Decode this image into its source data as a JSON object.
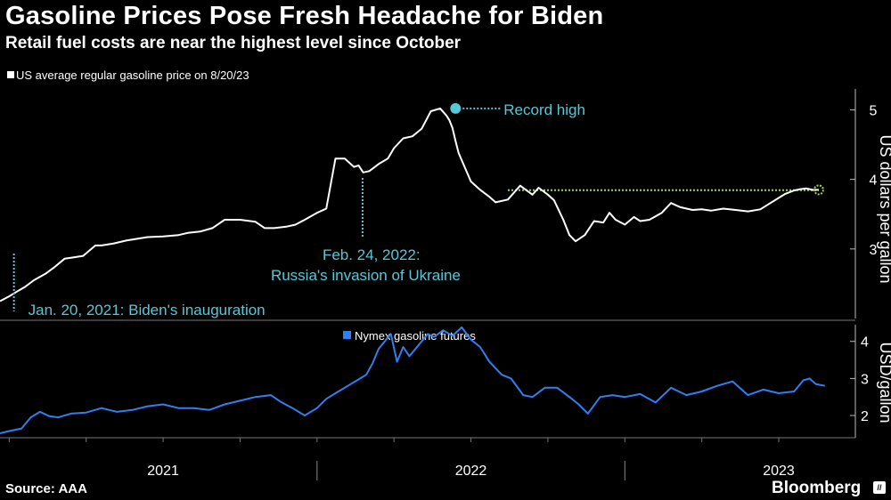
{
  "header": {
    "title": "Gasoline Prices Pose Fresh Headache for Biden",
    "subtitle": "Retail fuel costs are near the highest level since October"
  },
  "footer": {
    "source": "Source: AAA",
    "brand": "Bloomberg",
    "brand_icon_text": "//"
  },
  "colors": {
    "background": "#000000",
    "retail_line": "#ffffff",
    "futures_line": "#2f7ff0",
    "annotation": "#56c8d8",
    "current_marker": "#a8d84a",
    "axis": "#888888"
  },
  "chart_data": [
    {
      "type": "line",
      "legend": "US average regular gasoline price on 8/20/23",
      "ylabel": "US dollars per gallon",
      "ylim": [
        2.0,
        5.3
      ],
      "yticks": [
        "3",
        "4",
        "5"
      ],
      "xlim": [
        2020.97,
        2023.72
      ],
      "series": [
        {
          "name": "US average regular gasoline price",
          "x": [
            2020.97,
            2021.0,
            2021.03,
            2021.05,
            2021.08,
            2021.12,
            2021.15,
            2021.18,
            2021.21,
            2021.24,
            2021.28,
            2021.3,
            2021.34,
            2021.38,
            2021.42,
            2021.45,
            2021.5,
            2021.55,
            2021.58,
            2021.62,
            2021.66,
            2021.7,
            2021.75,
            2021.8,
            2021.83,
            2021.86,
            2021.9,
            2021.93,
            2021.96,
            2022.0,
            2022.03,
            2022.06,
            2022.09,
            2022.12,
            2022.135,
            2022.15,
            2022.17,
            2022.2,
            2022.23,
            2022.25,
            2022.28,
            2022.31,
            2022.34,
            2022.37,
            2022.4,
            2022.42,
            2022.43,
            2022.44,
            2022.45,
            2022.46,
            2022.5,
            2022.53,
            2022.56,
            2022.58,
            2022.62,
            2022.66,
            2022.7,
            2022.72,
            2022.75,
            2022.77,
            2022.8,
            2022.82,
            2022.84,
            2022.87,
            2022.9,
            2022.93,
            2022.95,
            2022.97,
            2023.0,
            2023.03,
            2023.05,
            2023.08,
            2023.12,
            2023.15,
            2023.18,
            2023.22,
            2023.25,
            2023.28,
            2023.32,
            2023.36,
            2023.4,
            2023.44,
            2023.48,
            2023.52,
            2023.55,
            2023.57,
            2023.59,
            2023.61,
            2023.63
          ],
          "values": [
            2.25,
            2.32,
            2.4,
            2.45,
            2.55,
            2.65,
            2.75,
            2.86,
            2.88,
            2.9,
            3.05,
            3.05,
            3.08,
            3.12,
            3.15,
            3.17,
            3.18,
            3.2,
            3.23,
            3.25,
            3.3,
            3.42,
            3.42,
            3.39,
            3.3,
            3.3,
            3.32,
            3.35,
            3.42,
            3.52,
            3.58,
            4.3,
            4.3,
            4.18,
            4.2,
            4.1,
            4.12,
            4.22,
            4.3,
            4.45,
            4.59,
            4.62,
            4.73,
            4.98,
            5.02,
            4.92,
            4.85,
            4.74,
            4.55,
            4.38,
            3.97,
            3.85,
            3.75,
            3.67,
            3.71,
            3.91,
            3.78,
            3.88,
            3.78,
            3.7,
            3.42,
            3.2,
            3.11,
            3.2,
            3.4,
            3.38,
            3.52,
            3.42,
            3.35,
            3.46,
            3.4,
            3.42,
            3.52,
            3.66,
            3.6,
            3.56,
            3.57,
            3.55,
            3.58,
            3.56,
            3.54,
            3.57,
            3.68,
            3.79,
            3.84,
            3.86,
            3.87,
            3.85,
            3.85
          ]
        }
      ],
      "annotations": [
        {
          "label": "Record high",
          "date": 2022.45,
          "value": 5.02
        },
        {
          "label": "Feb. 24, 2022:",
          "label2": "Russia's invasion of Ukraine",
          "date": 2022.148
        },
        {
          "label": "Jan. 20, 2021: Biden's inauguration",
          "date": 2021.05
        }
      ],
      "reference_line": {
        "value": 3.87,
        "from": 2022.62,
        "to": 2023.63
      }
    },
    {
      "type": "line",
      "legend": "Nymex gasoline futures",
      "ylabel": "USD/gallon",
      "ylim": [
        1.4,
        4.45
      ],
      "yticks": [
        "2",
        "3",
        "4"
      ],
      "xlim": [
        2020.97,
        2023.72
      ],
      "xticks": [
        "2021",
        "2022",
        "2023"
      ],
      "series": [
        {
          "name": "Nymex gasoline futures",
          "x": [
            2020.97,
            2021.0,
            2021.04,
            2021.07,
            2021.1,
            2021.13,
            2021.16,
            2021.2,
            2021.25,
            2021.3,
            2021.35,
            2021.4,
            2021.45,
            2021.5,
            2021.55,
            2021.6,
            2021.65,
            2021.7,
            2021.75,
            2021.8,
            2021.85,
            2021.88,
            2021.92,
            2021.96,
            2022.0,
            2022.03,
            2022.06,
            2022.1,
            2022.14,
            2022.16,
            2022.18,
            2022.2,
            2022.22,
            2022.24,
            2022.26,
            2022.28,
            2022.3,
            2022.33,
            2022.36,
            2022.38,
            2022.41,
            2022.44,
            2022.47,
            2022.5,
            2022.53,
            2022.56,
            2022.6,
            2022.63,
            2022.67,
            2022.7,
            2022.74,
            2022.78,
            2022.82,
            2022.85,
            2022.88,
            2022.92,
            2022.96,
            2023.0,
            2023.05,
            2023.1,
            2023.15,
            2023.2,
            2023.25,
            2023.3,
            2023.35,
            2023.4,
            2023.45,
            2023.5,
            2023.55,
            2023.58,
            2023.6,
            2023.62,
            2023.65
          ],
          "values": [
            1.52,
            1.58,
            1.65,
            1.95,
            2.1,
            1.98,
            1.95,
            2.05,
            2.08,
            2.2,
            2.1,
            2.15,
            2.25,
            2.3,
            2.2,
            2.2,
            2.15,
            2.3,
            2.4,
            2.5,
            2.55,
            2.38,
            2.2,
            2.0,
            2.2,
            2.45,
            2.6,
            2.8,
            3.0,
            3.1,
            3.4,
            3.8,
            4.0,
            4.2,
            3.45,
            3.85,
            3.6,
            3.9,
            4.2,
            4.12,
            4.3,
            4.15,
            4.38,
            4.05,
            3.85,
            3.45,
            3.1,
            3.0,
            2.55,
            2.5,
            2.75,
            2.75,
            2.5,
            2.3,
            2.05,
            2.5,
            2.55,
            2.5,
            2.58,
            2.35,
            2.75,
            2.55,
            2.65,
            2.8,
            2.92,
            2.55,
            2.7,
            2.6,
            2.65,
            2.95,
            3.0,
            2.85,
            2.8
          ]
        }
      ]
    }
  ]
}
